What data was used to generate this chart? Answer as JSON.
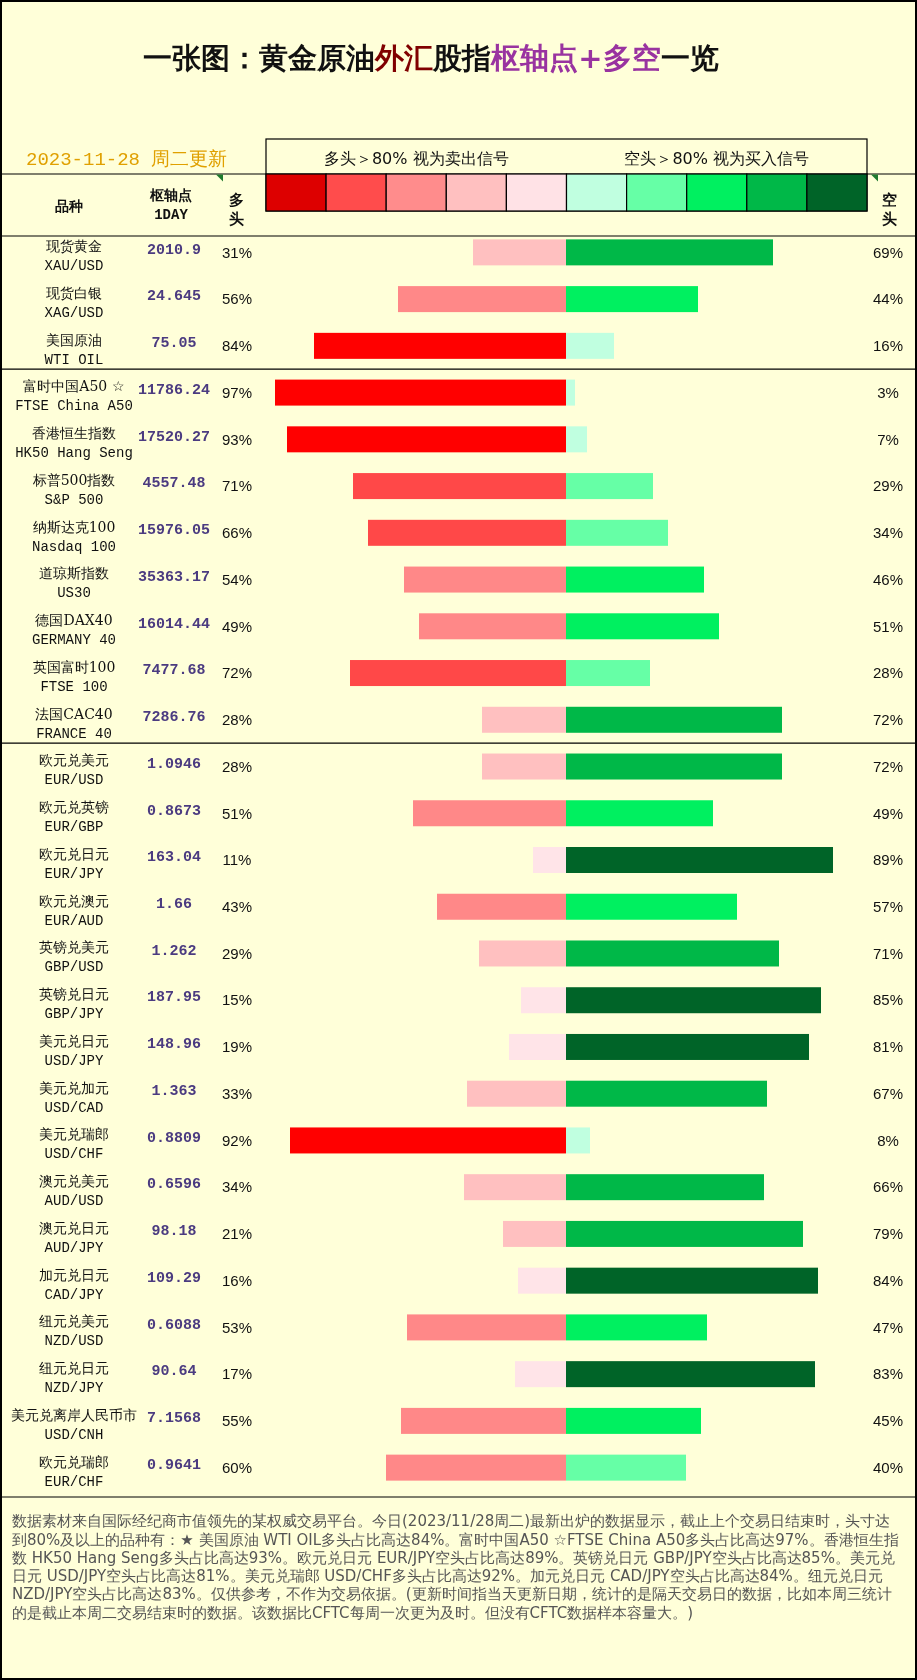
{
  "chart_data": [
    {
      "type": "bar",
      "orientation": "horizontal",
      "title": "一张图：黄金原油外汇股指枢轴点+多空一览",
      "subtitle": "2023-11-28 周二更新",
      "ylabel": "品种",
      "xlabel": "多头",
      "categories": [
        "现货黄金\nXAU/USD",
        "现货白银\nXAG/USD",
        "美国原油\nWTI OIL",
        "富时中国A50 ☆\nFTSE China A50",
        "香港恒生指数\nHK50 Hang Seng",
        "标普500指数\nS&P 500",
        "纳斯达克100\nNasdaq 100",
        "道琼斯指数\nUS30",
        "德国DAX40\nGERMANY 40",
        "英国富时100\nFTSE 100",
        "法国CAC40\nFRANCE 40",
        "欧元兑美元\nEUR/USD",
        "欧元兑英镑\nEUR/GBP",
        "欧元兑日元\nEUR/JPY",
        "欧元兑澳元\nEUR/AUD",
        "英镑兑美元\nGBP/USD",
        "英镑兑日元\nGBP/JPY",
        "美元兑日元\nUSD/JPY",
        "美元兑加元\nUSD/CAD",
        "美元兑瑞郎\nUSD/CHF",
        "澳元兑美元\nAUD/USD",
        "澳元兑日元\nAUD/JPY",
        "加元兑日元\nCAD/JPY",
        "纽元兑美元\nNZD/USD",
        "纽元兑日元\nNZD/JPY",
        "美元兑离岸人民币市\nUSD/CNH",
        "欧元兑瑞郎\nEUR/CHF"
      ],
      "values": [
        31,
        56,
        84,
        97,
        93,
        71,
        66,
        54,
        49,
        72,
        28,
        28,
        51,
        11,
        43,
        29,
        15,
        19,
        33,
        92,
        34,
        21,
        16,
        53,
        17,
        55,
        60
      ],
      "colors": [
        "#ffc0c0",
        "#ff8888",
        "#ff0000",
        "#ff0000",
        "#ff0000",
        "#ff4848",
        "#ff4848",
        "#ff8888",
        "#ff8888",
        "#ff4848",
        "#ffc0c0",
        "#ffc0c0",
        "#ff8888",
        "#ffe4e8",
        "#ff8888",
        "#ffc0c0",
        "#ffe4e8",
        "#ffe4e8",
        "#ffc0c0",
        "#ff0000",
        "#ffc0c0",
        "#ffc0c0",
        "#ffe4e8",
        "#ff8888",
        "#ffe4e8",
        "#ff8888",
        "#ff8888"
      ],
      "value_labels": [
        "31%",
        "56%",
        "84%",
        "97%",
        "93%",
        "71%",
        "66%",
        "54%",
        "49%",
        "72%",
        "28%",
        "28%",
        "51%",
        "11%",
        "43%",
        "29%",
        "15%",
        "19%",
        "33%",
        "92%",
        "34%",
        "21%",
        "16%",
        "53%",
        "17%",
        "55%",
        "60%"
      ],
      "annotations": [
        "多头＞80% 视为卖出信号",
        "枢轴点\n1DAY",
        "2010.9",
        "24.645",
        "75.05",
        "11786.24",
        "17520.27",
        "4557.48",
        "15976.05",
        "35363.17",
        "16014.44",
        "7477.68",
        "7286.76",
        "1.0946",
        "0.8673",
        "163.04",
        "1.66",
        "1.262",
        "187.95",
        "148.96",
        "1.363",
        "0.8809",
        "0.6596",
        "98.18",
        "109.29",
        "0.6088",
        "90.64",
        "7.1568",
        "0.9641",
        "数据素材来自国际经纪商市值领先的某权威交易平台。今日(2023/11/28周二)最新出炉的数据显示，截止上个交易日结束时，头寸达到80%及以上的品种有：★ 美国原油 WTI OIL多头占比高达84%。富时中国A50 ☆FTSE China A50多头占比高达97%。香港恒生指数 HK50 Hang Seng多头占比高达93%。欧元兑日元 EUR/JPY空头占比高达89%。英镑兑日元 GBP/JPY空头占比高达85%。美元兑日元 USD/JPY空头占比高达81%。美元兑瑞郎 USD/CHF多头占比高达92%。加元兑日元 CAD/JPY空头占比高达84%。纽元兑日元 NZD/JPY空头占比高达83%。仅供参考，不作为交易依据。(更新时间指当天更新日期，统计的是隔天交易日的数据，比如本周三统计的是截止本周二交易结束时的数据。该数据比CFTC每周一次更为及时。但没有CFTC数据样本容量大。)"
      ]
    },
    {
      "type": "bar",
      "orientation": "horizontal",
      "xlabel": "空头",
      "tick_labels": false,
      "categories": [
        "现货黄金\nXAU/USD",
        "现货白银\nXAG/USD",
        "美国原油\nWTI OIL",
        "富时中国A50 ☆\nFTSE China A50",
        "香港恒生指数\nHK50 Hang Seng",
        "标普500指数\nS&P 500",
        "纳斯达克100\nNasdaq 100",
        "道琼斯指数\nUS30",
        "德国DAX40\nGERMANY 40",
        "英国富时100\nFTSE 100",
        "法国CAC40\nFRANCE 40",
        "欧元兑美元\nEUR/USD",
        "欧元兑英镑\nEUR/GBP",
        "欧元兑日元\nEUR/JPY",
        "欧元兑澳元\nEUR/AUD",
        "英镑兑美元\nGBP/USD",
        "英镑兑日元\nGBP/JPY",
        "美元兑日元\nUSD/JPY",
        "美元兑加元\nUSD/CAD",
        "美元兑瑞郎\nUSD/CHF",
        "澳元兑美元\nAUD/USD",
        "澳元兑日元\nAUD/JPY",
        "加元兑日元\nCAD/JPY",
        "纽元兑美元\nNZD/USD",
        "纽元兑日元\nNZD/JPY",
        "美元兑离岸人民币市\nUSD/CNH",
        "欧元兑瑞郎\nEUR/CHF"
      ],
      "values": [
        69,
        44,
        16,
        3,
        7,
        29,
        34,
        46,
        51,
        28,
        72,
        72,
        49,
        89,
        57,
        71,
        85,
        81,
        67,
        8,
        66,
        79,
        84,
        47,
        83,
        45,
        40
      ],
      "colors": [
        "#00b848",
        "#00f060",
        "#c0ffe0",
        "#c0ffe0",
        "#c0ffe0",
        "#66ffa6",
        "#66ffa6",
        "#00f060",
        "#00f060",
        "#66ffa6",
        "#00b848",
        "#00b848",
        "#00f060",
        "#006428",
        "#00f060",
        "#00b848",
        "#006428",
        "#006428",
        "#00b848",
        "#c0ffe0",
        "#00b848",
        "#00b848",
        "#006428",
        "#00f060",
        "#006428",
        "#00f060",
        "#66ffa6"
      ],
      "value_labels": [
        "69%",
        "44%",
        "16%",
        "3%",
        "7%",
        "29%",
        "34%",
        "46%",
        "51%",
        "28%",
        "72%",
        "72%",
        "49%",
        "89%",
        "57%",
        "71%",
        "85%",
        "81%",
        "67%",
        "8%",
        "66%",
        "79%",
        "84%",
        "47%",
        "83%",
        "45%",
        "40%"
      ],
      "annotations": [
        "空头＞80% 视为买入信号"
      ]
    }
  ]
}
